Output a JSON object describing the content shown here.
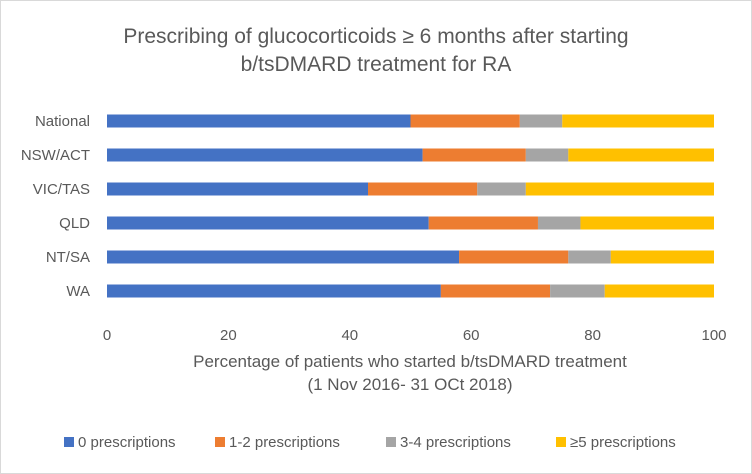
{
  "chart_data": {
    "type": "bar",
    "orientation": "horizontal",
    "stacked": true,
    "title_lines": [
      "Prescribing of glucocorticoids ≥ 6 months after starting",
      "b/tsDMARD treatment for RA"
    ],
    "xlabel_lines": [
      "Percentage of patients who started b/tsDMARD treatment",
      "(1 Nov 2016- 31 OCt 2018)"
    ],
    "ylabel": "",
    "categories": [
      "National",
      "NSW/ACT",
      "VIC/TAS",
      "QLD",
      "NT/SA",
      "WA"
    ],
    "xlim": [
      0,
      100
    ],
    "xticks": [
      0,
      20,
      40,
      60,
      80,
      100
    ],
    "grid": false,
    "legend_position": "bottom",
    "series": [
      {
        "name": "0 prescriptions",
        "color": "#4472C4",
        "values": [
          50,
          52,
          43,
          53,
          58,
          55
        ]
      },
      {
        "name": "1-2 prescriptions",
        "color": "#ED7D31",
        "values": [
          18,
          17,
          18,
          18,
          18,
          18
        ]
      },
      {
        "name": "3-4 prescriptions",
        "color": "#A5A5A5",
        "values": [
          7,
          7,
          8,
          7,
          7,
          9
        ]
      },
      {
        "name": "≥5 prescriptions",
        "color": "#FFC000",
        "values": [
          25,
          24,
          31,
          22,
          17,
          18
        ]
      }
    ]
  }
}
